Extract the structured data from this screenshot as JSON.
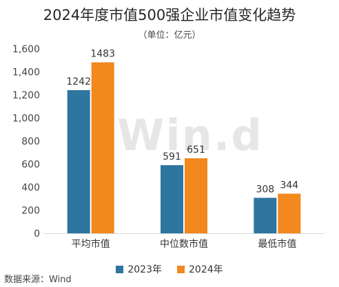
{
  "chart_data": {
    "type": "bar",
    "title": "2024年度市值500强企业市值变化趋势",
    "unit_label": "（单位：亿元）",
    "categories": [
      "平均市值",
      "中位数市值",
      "最低市值"
    ],
    "series": [
      {
        "name": "2023年",
        "color": "#2e75a0",
        "values": [
          1242,
          591,
          308
        ]
      },
      {
        "name": "2024年",
        "color": "#f2881e",
        "values": [
          1483,
          651,
          344
        ]
      }
    ],
    "ylim": [
      0,
      1600
    ],
    "yticks": [
      "0",
      "200",
      "400",
      "600",
      "800",
      "1,000",
      "1,200",
      "1,400",
      "1,600"
    ],
    "grid": false,
    "legend": "bottom"
  },
  "watermark": "Win.d",
  "source": "数据来源：Wind"
}
